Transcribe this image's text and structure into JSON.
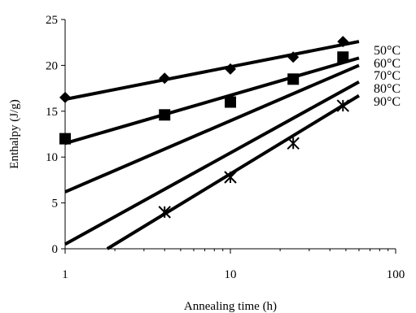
{
  "chart_data": {
    "type": "scatter",
    "xlabel": "Annealing time (h)",
    "ylabel": "Enthalpy (J/g)",
    "xscale": "log",
    "xlim": [
      1,
      100
    ],
    "ylim": [
      0,
      25
    ],
    "xticks": [
      1,
      10,
      100
    ],
    "xtick_labels": [
      "1",
      "10",
      "100"
    ],
    "yticks": [
      0,
      5,
      10,
      15,
      20,
      25
    ],
    "ytick_labels": [
      "0",
      "5",
      "10",
      "15",
      "20",
      "25"
    ],
    "grid": false,
    "legend": "none",
    "series": [
      {
        "name": "50°C",
        "marker": "diamond",
        "points": [
          {
            "x": 1,
            "y": 16.5
          },
          {
            "x": 4,
            "y": 18.6
          },
          {
            "x": 10,
            "y": 19.6
          },
          {
            "x": 24,
            "y": 20.9
          },
          {
            "x": 48,
            "y": 22.6
          }
        ],
        "trendline": [
          {
            "x": 1,
            "y": 16.3
          },
          {
            "x": 60,
            "y": 22.6
          }
        ]
      },
      {
        "name": "60°C",
        "marker": "square",
        "points": [
          {
            "x": 1,
            "y": 12.0
          },
          {
            "x": 4,
            "y": 14.6
          },
          {
            "x": 10,
            "y": 16.0
          },
          {
            "x": 24,
            "y": 18.5
          },
          {
            "x": 48,
            "y": 20.9
          }
        ],
        "trendline": [
          {
            "x": 1,
            "y": 11.5
          },
          {
            "x": 60,
            "y": 20.8
          }
        ]
      },
      {
        "name": "70°C",
        "marker": "none",
        "points": [],
        "trendline": [
          {
            "x": 1,
            "y": 6.2
          },
          {
            "x": 60,
            "y": 20.0
          }
        ]
      },
      {
        "name": "80°C",
        "marker": "none",
        "points": [],
        "trendline": [
          {
            "x": 1,
            "y": 0.5
          },
          {
            "x": 60,
            "y": 18.2
          }
        ]
      },
      {
        "name": "90°C",
        "marker": "star",
        "points": [
          {
            "x": 4,
            "y": 4.0
          },
          {
            "x": 10,
            "y": 7.8
          },
          {
            "x": 24,
            "y": 11.5
          },
          {
            "x": 48,
            "y": 15.6
          }
        ],
        "trendline": [
          {
            "x": 1.8,
            "y": 0
          },
          {
            "x": 60,
            "y": 16.7
          }
        ]
      }
    ]
  }
}
